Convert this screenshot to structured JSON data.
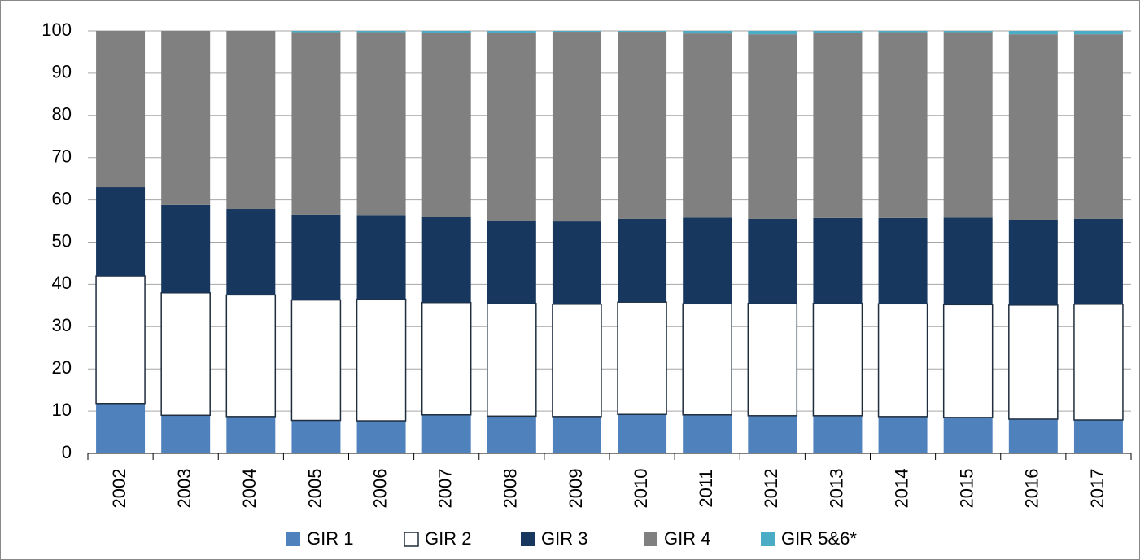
{
  "chart_data": {
    "type": "stacked-bar",
    "categories": [
      "2002",
      "2003",
      "2004",
      "2005",
      "2006",
      "2007",
      "2008",
      "2009",
      "2010",
      "2011",
      "2012",
      "2013",
      "2014",
      "2015",
      "2016",
      "2017"
    ],
    "series": [
      {
        "name": "GIR 1",
        "color": "#4f81bd",
        "values": [
          11.8,
          9,
          8.7,
          7.8,
          7.7,
          9.1,
          8.8,
          8.7,
          9.2,
          9.1,
          8.9,
          8.9,
          8.7,
          8.5,
          8.1,
          7.9
        ]
      },
      {
        "name": "GIR 2",
        "color": "#ffffff",
        "values": [
          30.2,
          29,
          28.8,
          28.5,
          28.8,
          26.6,
          26.7,
          26.6,
          26.6,
          26.3,
          26.6,
          26.6,
          26.7,
          26.7,
          27,
          27.4
        ]
      },
      {
        "name": "GIR 3",
        "color": "#17375e",
        "values": [
          21,
          20.8,
          20.3,
          20.2,
          19.9,
          20.3,
          19.6,
          19.6,
          19.7,
          20.4,
          20,
          20.2,
          20.3,
          20.6,
          20.2,
          20.2
        ]
      },
      {
        "name": "GIR 4",
        "color": "#808080",
        "values": [
          37,
          41.2,
          42.2,
          43.2,
          43.3,
          43.6,
          44.4,
          44.9,
          44.3,
          43.6,
          43.7,
          43.9,
          44,
          43.9,
          43.9,
          43.7
        ]
      },
      {
        "name": "GIR 5&6*",
        "color": "#4bacc6",
        "values": [
          0,
          0,
          0,
          0.3,
          0.3,
          0.4,
          0.5,
          0.2,
          0.2,
          0.6,
          0.8,
          0.4,
          0.3,
          0.3,
          0.8,
          0.8
        ]
      }
    ],
    "ylim": [
      0,
      100
    ],
    "yticks": [
      0,
      10,
      20,
      30,
      40,
      50,
      60,
      70,
      80,
      90,
      100
    ],
    "grid": true
  }
}
